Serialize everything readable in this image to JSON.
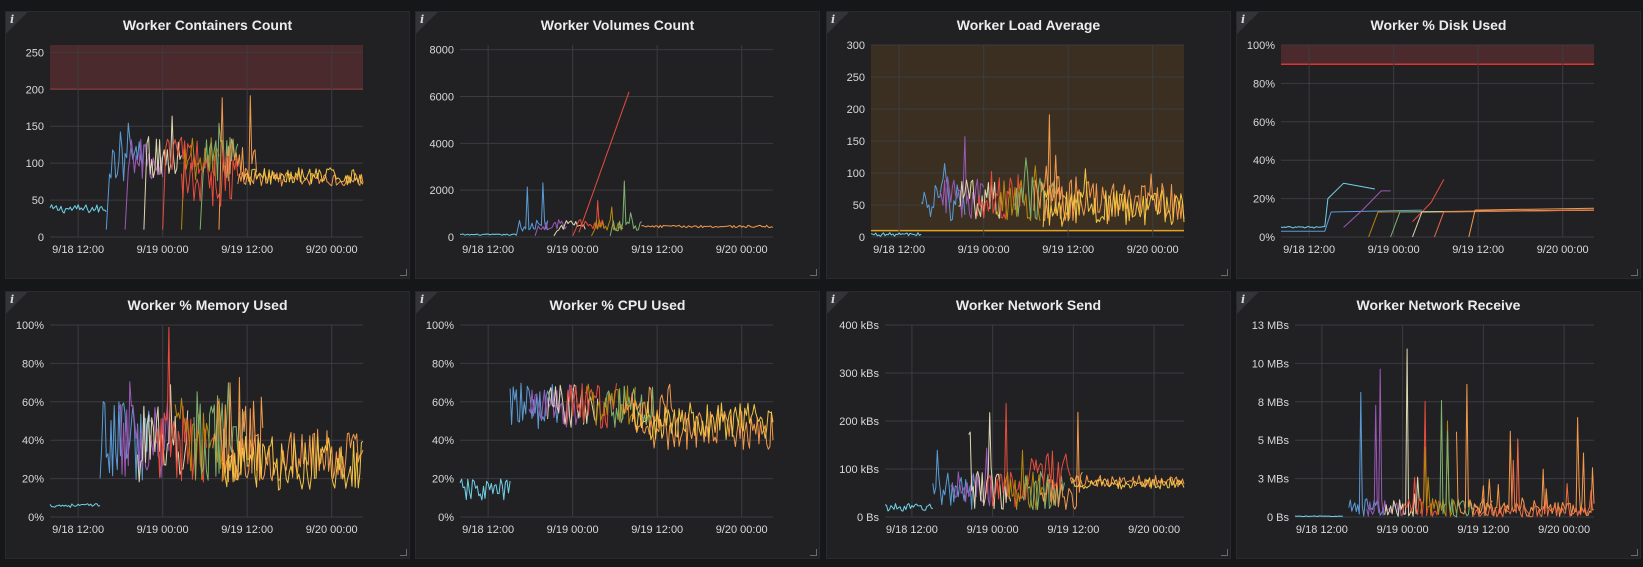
{
  "info_glyph": "i",
  "colors": {
    "background": "#161719",
    "panel": "#212124",
    "grid": "#3c3c40",
    "threshold_red_line": "#e0352b",
    "threshold_red_fill": "#4a2a2c",
    "threshold_orange_fill": "#3b2f22",
    "threshold_orange_line": "#e5a21f",
    "series_palette": [
      "#6fd3e8",
      "#5a9bd5",
      "#9b59b6",
      "#e0d7b0",
      "#e74c3c",
      "#b8870b",
      "#7eb26d",
      "#f2994a",
      "#f4c542",
      "#ef6c44"
    ]
  },
  "panels": [
    {
      "title": "Worker Containers Count",
      "chart_data": {
        "type": "line",
        "title": "Worker Containers Count",
        "y_ticks": [
          "0",
          "50",
          "100",
          "150",
          "200",
          "250"
        ],
        "y_tick_values": [
          0,
          50,
          100,
          150,
          200,
          250
        ],
        "ylim": [
          0,
          260
        ],
        "x_ticks": [
          "9/18 12:00",
          "9/19 00:00",
          "9/19 12:00",
          "9/20 00:00"
        ],
        "threshold": {
          "value": 200,
          "color": "red",
          "region": "above"
        },
        "profile": "containers"
      }
    },
    {
      "title": "Worker Volumes Count",
      "chart_data": {
        "type": "line",
        "title": "Worker Volumes Count",
        "y_ticks": [
          "0",
          "2000",
          "4000",
          "6000",
          "8000"
        ],
        "y_tick_values": [
          0,
          2000,
          4000,
          6000,
          8000
        ],
        "ylim": [
          0,
          8200
        ],
        "x_ticks": [
          "9/18 12:00",
          "9/19 00:00",
          "9/19 12:00",
          "9/20 00:00"
        ],
        "profile": "volumes"
      }
    },
    {
      "title": "Worker Load Average",
      "chart_data": {
        "type": "line",
        "title": "Worker Load Average",
        "y_ticks": [
          "0",
          "50",
          "100",
          "150",
          "200",
          "250",
          "300"
        ],
        "y_tick_values": [
          0,
          50,
          100,
          150,
          200,
          250,
          300
        ],
        "ylim": [
          0,
          300
        ],
        "x_ticks": [
          "9/18 12:00",
          "9/19 00:00",
          "9/19 12:00",
          "9/20 00:00"
        ],
        "threshold": {
          "value": 10,
          "color": "orange",
          "region": "above"
        },
        "profile": "load"
      }
    },
    {
      "title": "Worker % Disk Used",
      "chart_data": {
        "type": "line",
        "title": "Worker % Disk Used",
        "y_ticks": [
          "0%",
          "20%",
          "40%",
          "60%",
          "80%",
          "100%"
        ],
        "y_tick_values": [
          0,
          20,
          40,
          60,
          80,
          100
        ],
        "ylim": [
          0,
          100
        ],
        "x_ticks": [
          "9/18 12:00",
          "9/19 00:00",
          "9/19 12:00",
          "9/20 00:00"
        ],
        "threshold": {
          "value": 90,
          "color": "red",
          "region": "above"
        },
        "profile": "disk"
      }
    },
    {
      "title": "Worker % Memory Used",
      "chart_data": {
        "type": "line",
        "title": "Worker % Memory Used",
        "y_ticks": [
          "0%",
          "20%",
          "40%",
          "60%",
          "80%",
          "100%"
        ],
        "y_tick_values": [
          0,
          20,
          40,
          60,
          80,
          100
        ],
        "ylim": [
          0,
          100
        ],
        "x_ticks": [
          "9/18 12:00",
          "9/19 00:00",
          "9/19 12:00",
          "9/20 00:00"
        ],
        "profile": "memory"
      }
    },
    {
      "title": "Worker % CPU Used",
      "chart_data": {
        "type": "line",
        "title": "Worker % CPU Used",
        "y_ticks": [
          "0%",
          "20%",
          "40%",
          "60%",
          "80%",
          "100%"
        ],
        "y_tick_values": [
          0,
          20,
          40,
          60,
          80,
          100
        ],
        "ylim": [
          0,
          100
        ],
        "x_ticks": [
          "9/18 12:00",
          "9/19 00:00",
          "9/19 12:00",
          "9/20 00:00"
        ],
        "profile": "cpu"
      }
    },
    {
      "title": "Worker Network Send",
      "chart_data": {
        "type": "line",
        "title": "Worker Network Send",
        "y_ticks": [
          "0 Bs",
          "100 kBs",
          "200 kBs",
          "300 kBs",
          "400 kBs"
        ],
        "y_tick_values": [
          0,
          100,
          200,
          300,
          400
        ],
        "ylim": [
          0,
          400
        ],
        "x_ticks": [
          "9/18 12:00",
          "9/19 00:00",
          "9/19 12:00",
          "9/20 00:00"
        ],
        "profile": "send"
      }
    },
    {
      "title": "Worker Network Receive",
      "chart_data": {
        "type": "line",
        "title": "Worker Network Receive",
        "y_ticks": [
          "0 Bs",
          "3 MBs",
          "5 MBs",
          "8 MBs",
          "10 MBs",
          "13 MBs"
        ],
        "y_tick_values": [
          0,
          2.5,
          5,
          7.5,
          10,
          12.5
        ],
        "ylim": [
          0,
          12.5
        ],
        "x_ticks": [
          "9/18 12:00",
          "9/19 00:00",
          "9/19 12:00",
          "9/20 00:00"
        ],
        "profile": "receive"
      }
    }
  ]
}
